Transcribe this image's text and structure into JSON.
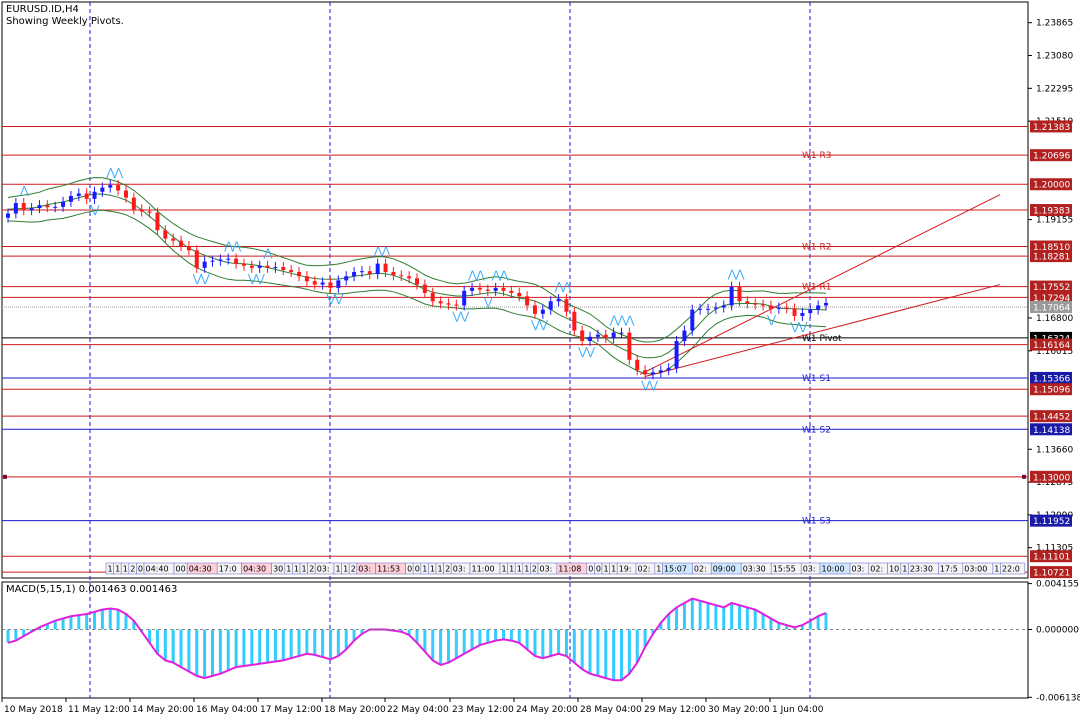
{
  "header": {
    "symbol": "EURUSD.ID,H4",
    "subtitle": "Showing Weekly Pivots."
  },
  "macd": {
    "label": "MACD(5,15,1) 0.001463 0.001463"
  },
  "colors": {
    "candle_up": "#1a1aff",
    "candle_down": "#ff1a1a",
    "support": "#1a1acc",
    "resistance": "#cc1a1a",
    "pivot": "#000000",
    "band": "#2e7d32",
    "macd_hist": "#33ccff",
    "macd_signal": "#e020e0"
  },
  "chart_data": [
    {
      "type": "candlestick",
      "title": "EURUSD.ID,H4",
      "ylim": [
        1.1058,
        1.2436
      ],
      "y_ticks": [
        "1.23865",
        "1.23080",
        "1.22295",
        "1.21510",
        "1.19155",
        "1.16800",
        "1.16015",
        "1.13660",
        "1.12875",
        "1.12090",
        "1.11305"
      ],
      "x_labels": [
        "10 May 2018",
        "11 May 12:00",
        "14 May 20:00",
        "16 May 04:00",
        "17 May 12:00",
        "18 May 20:00",
        "22 May 04:00",
        "23 May 12:00",
        "24 May 20:00",
        "28 May 04:00",
        "29 May 12:00",
        "30 May 20:00",
        "1 Jun 04:00"
      ],
      "pivot_levels": [
        {
          "name": "W1 R3",
          "value": 1.20696
        },
        {
          "name": "W1 R2",
          "value": 1.1851
        },
        {
          "name": "W1 R1",
          "value": 1.17552
        },
        {
          "name": "W1 Pivot",
          "value": 1.16324
        },
        {
          "name": "W1 S1",
          "value": 1.15366
        },
        {
          "name": "W1 S2",
          "value": 1.14138
        },
        {
          "name": "W1 S3",
          "value": 1.11952
        }
      ],
      "price_labels": [
        {
          "text": "1.21383",
          "value": 1.21383,
          "color": "red"
        },
        {
          "text": "1.20696",
          "value": 1.20696,
          "color": "red"
        },
        {
          "text": "1.20000",
          "value": 1.2,
          "color": "red"
        },
        {
          "text": "1.19383",
          "value": 1.19383,
          "color": "red"
        },
        {
          "text": "1.18510",
          "value": 1.1851,
          "color": "red"
        },
        {
          "text": "1.18281",
          "value": 1.18281,
          "color": "red"
        },
        {
          "text": "1.17552",
          "value": 1.17552,
          "color": "red"
        },
        {
          "text": "1.17294",
          "value": 1.17294,
          "color": "red"
        },
        {
          "text": "1.17064",
          "value": 1.17064,
          "color": "gray"
        },
        {
          "text": "1.16324",
          "value": 1.16324,
          "color": "black"
        },
        {
          "text": "1.16164",
          "value": 1.16164,
          "color": "red"
        },
        {
          "text": "1.15366",
          "value": 1.15366,
          "color": "blue"
        },
        {
          "text": "1.15096",
          "value": 1.15096,
          "color": "red"
        },
        {
          "text": "1.14452",
          "value": 1.14452,
          "color": "red"
        },
        {
          "text": "1.14138",
          "value": 1.14138,
          "color": "blue"
        },
        {
          "text": "1.13000",
          "value": 1.13,
          "color": "red"
        },
        {
          "text": "1.11952",
          "value": 1.11952,
          "color": "blue"
        },
        {
          "text": "1.11101",
          "value": 1.11101,
          "color": "red"
        },
        {
          "text": "1.10721",
          "value": 1.10721,
          "color": "red"
        }
      ],
      "series": [
        {
          "name": "close",
          "values": [
            1.193,
            1.1955,
            1.1938,
            1.1943,
            1.195,
            1.1945,
            1.1946,
            1.1958,
            1.1972,
            1.1978,
            1.1965,
            1.1982,
            1.1992,
            1.1998,
            1.1985,
            1.1968,
            1.194,
            1.1935,
            1.1932,
            1.189,
            1.187,
            1.1865,
            1.1852,
            1.1842,
            1.18,
            1.1815,
            1.1817,
            1.182,
            1.1822,
            1.181,
            1.1805,
            1.18,
            1.1805,
            1.18,
            1.1802,
            1.1795,
            1.179,
            1.178,
            1.1768,
            1.176,
            1.1765,
            1.1752,
            1.177,
            1.178,
            1.179,
            1.1792,
            1.1785,
            1.181,
            1.179,
            1.1782,
            1.178,
            1.1775,
            1.176,
            1.174,
            1.172,
            1.1715,
            1.1712,
            1.171,
            1.1745,
            1.1752,
            1.1748,
            1.1745,
            1.1752,
            1.1745,
            1.174,
            1.1732,
            1.171,
            1.169,
            1.17,
            1.172,
            1.1725,
            1.1695,
            1.165,
            1.1625,
            1.1635,
            1.164,
            1.1632,
            1.1645,
            1.1645,
            1.158,
            1.1555,
            1.1545,
            1.155,
            1.1555,
            1.156,
            1.1625,
            1.165,
            1.17,
            1.1702,
            1.1702,
            1.1705,
            1.171,
            1.1755,
            1.172,
            1.1715,
            1.1712,
            1.171,
            1.1702,
            1.1705,
            1.1703,
            1.1685,
            1.1692,
            1.17,
            1.171,
            1.1716
          ]
        },
        {
          "name": "open",
          "values": [
            1.192,
            1.193,
            1.1955,
            1.1938,
            1.1943,
            1.195,
            1.1945,
            1.1946,
            1.1958,
            1.1972,
            1.1978,
            1.1965,
            1.1982,
            1.1992,
            1.1998,
            1.1985,
            1.1968,
            1.194,
            1.1935,
            1.1932,
            1.189,
            1.187,
            1.1865,
            1.1852,
            1.1842,
            1.18,
            1.1815,
            1.1817,
            1.182,
            1.1822,
            1.181,
            1.1805,
            1.18,
            1.1805,
            1.18,
            1.1802,
            1.1795,
            1.179,
            1.178,
            1.1768,
            1.176,
            1.1765,
            1.1752,
            1.177,
            1.178,
            1.179,
            1.1792,
            1.1785,
            1.181,
            1.179,
            1.1782,
            1.178,
            1.1775,
            1.176,
            1.174,
            1.172,
            1.1715,
            1.1712,
            1.171,
            1.1745,
            1.1752,
            1.1748,
            1.1745,
            1.1752,
            1.1745,
            1.174,
            1.1732,
            1.171,
            1.169,
            1.17,
            1.172,
            1.1725,
            1.1695,
            1.165,
            1.1625,
            1.1635,
            1.164,
            1.1632,
            1.1645,
            1.1645,
            1.158,
            1.1555,
            1.1545,
            1.155,
            1.1555,
            1.156,
            1.1625,
            1.165,
            1.17,
            1.1702,
            1.1702,
            1.1705,
            1.171,
            1.1755,
            1.172,
            1.1715,
            1.1712,
            1.171,
            1.1702,
            1.1705,
            1.1703,
            1.1685,
            1.1692,
            1.17,
            1.171
          ]
        },
        {
          "name": "macd",
          "values": [
            -0.0012,
            -0.001,
            -0.0006,
            -0.0002,
            0.0002,
            0.0005,
            0.0008,
            0.001,
            0.0012,
            0.0013,
            0.0014,
            0.0016,
            0.0018,
            0.0019,
            0.0018,
            0.0014,
            0.0008,
            -0.0002,
            -0.0012,
            -0.0022,
            -0.0028,
            -0.003,
            -0.0034,
            -0.0038,
            -0.0042,
            -0.0044,
            -0.0042,
            -0.004,
            -0.0037,
            -0.0034,
            -0.0033,
            -0.0032,
            -0.0031,
            -0.003,
            -0.0029,
            -0.0028,
            -0.0026,
            -0.0024,
            -0.0022,
            -0.0023,
            -0.0025,
            -0.0027,
            -0.0024,
            -0.0018,
            -0.001,
            -0.0004,
            0.0,
            0.0,
            0.0,
            -0.0001,
            -0.0002,
            -0.0005,
            -0.0012,
            -0.002,
            -0.0028,
            -0.0032,
            -0.003,
            -0.0026,
            -0.0022,
            -0.0018,
            -0.0014,
            -0.0012,
            -0.001,
            -0.0009,
            -0.001,
            -0.0012,
            -0.0018,
            -0.0024,
            -0.0026,
            -0.0024,
            -0.0022,
            -0.0024,
            -0.003,
            -0.0036,
            -0.004,
            -0.0042,
            -0.0044,
            -0.0046,
            -0.0046,
            -0.004,
            -0.003,
            -0.0016,
            -0.0004,
            0.0006,
            0.0014,
            0.002,
            0.0024,
            0.0028,
            0.0026,
            0.0024,
            0.0022,
            0.002,
            0.0024,
            0.0022,
            0.002,
            0.0018,
            0.0014,
            0.001,
            0.0006,
            0.0004,
            0.0002,
            0.0004,
            0.0008,
            0.0012,
            0.0015
          ]
        }
      ],
      "macd_ticks": [
        "0.004155",
        "0.000000",
        "-0.006138"
      ],
      "macd_ylim": [
        -0.0062,
        0.0043
      ]
    }
  ],
  "time_strip": [
    "1",
    "1",
    "1",
    "2",
    "0",
    "04:40",
    "00",
    "04:30",
    "17:0",
    "04:30",
    "30",
    "1",
    "1",
    "1",
    "2",
    "03:",
    "1",
    "1",
    "2",
    "03:",
    "11:53",
    "0",
    "0",
    "1",
    "1",
    "1",
    "2",
    "03:",
    "11:00",
    "1",
    "1",
    "1",
    "1",
    "2",
    "03:",
    "11:08",
    "0",
    "0",
    "1",
    "1",
    "19:",
    "02:",
    "1",
    "15:07",
    "02:",
    "09:00",
    "03:30",
    "15:55",
    "03:",
    "10:00",
    "03:",
    "02:",
    "10",
    "1",
    "23:30",
    "17:5",
    "03:00",
    "1",
    "22:0"
  ]
}
